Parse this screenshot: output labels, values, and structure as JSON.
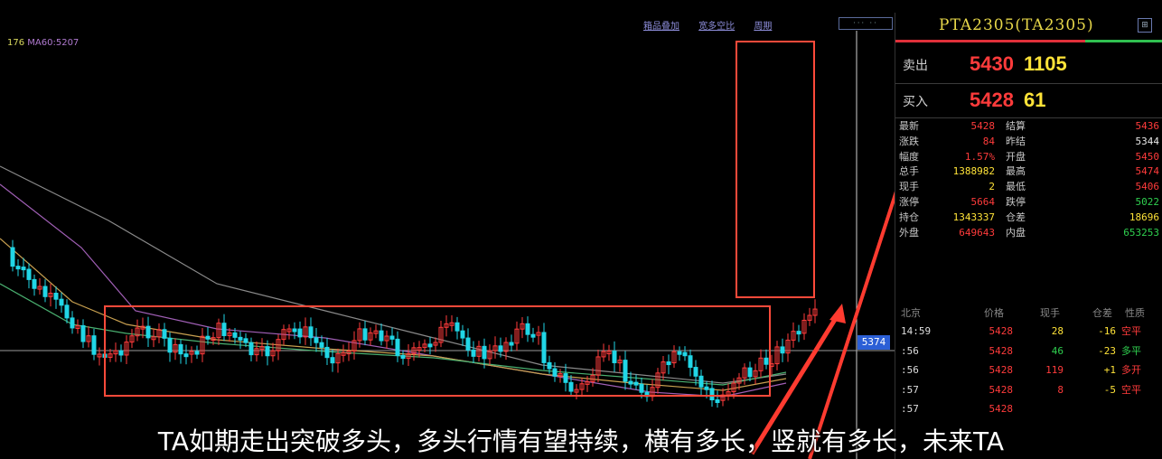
{
  "ma_legend": {
    "a": "176",
    "b": "MA60:5207"
  },
  "top_links": [
    "箱品叠加",
    "宽多空比",
    "周期"
  ],
  "tools_label": "··· ··",
  "price_tag": "5374",
  "panel": {
    "title": "PTA2305(TA2305)",
    "icon": "⊞",
    "ask": {
      "label": "卖出",
      "price": "5430",
      "volume": "1105"
    },
    "bid": {
      "label": "买入",
      "price": "5428",
      "volume": "61"
    },
    "stats": [
      {
        "l1": "最新",
        "v1": "5428",
        "l2": "结算",
        "v2": "5436"
      },
      {
        "l1": "涨跌",
        "v1": "84",
        "l2": "昨结",
        "v2": "5344"
      },
      {
        "l1": "幅度",
        "v1": "1.57%",
        "l2": "开盘",
        "v2": "5450"
      },
      {
        "l1": "总手",
        "v1": "1388982",
        "l2": "最高",
        "v2": "5474"
      },
      {
        "l1": "现手",
        "v1": "2",
        "l2": "最低",
        "v2": "5406"
      },
      {
        "l1": "涨停",
        "v1": "5664",
        "l2": "跌停",
        "v2": "5022"
      },
      {
        "l1": "持仓",
        "v1": "1343337",
        "l2": "仓差",
        "v2": "18696"
      },
      {
        "l1": "外盘",
        "v1": "649643",
        "l2": "内盘",
        "v2": "653253"
      }
    ],
    "tick_header": [
      "北京",
      "价格",
      "现手",
      "仓差",
      "性质"
    ],
    "ticks": [
      {
        "t": "14:59",
        "p": "5428",
        "q": "28",
        "d": "-16",
        "n": "空平"
      },
      {
        "t": ":56",
        "p": "5428",
        "q": "46",
        "d": "-23",
        "n": "多平"
      },
      {
        "t": ":56",
        "p": "5428",
        "q": "119",
        "d": "+1",
        "n": "多开"
      },
      {
        "t": ":57",
        "p": "5428",
        "q": "8",
        "d": "-5",
        "n": "空平"
      },
      {
        "t": ":57",
        "p": "5428",
        "q": "",
        "d": "",
        "n": ""
      }
    ]
  },
  "caption": "TA如期走出突破多头，多头行情有望持续，横有多长，竖就有多长，未来TA",
  "colors": {
    "up": "#ff3b3b",
    "down": "#21d6e6",
    "annotation": "#ff3b30",
    "price": "#ffe338"
  }
}
